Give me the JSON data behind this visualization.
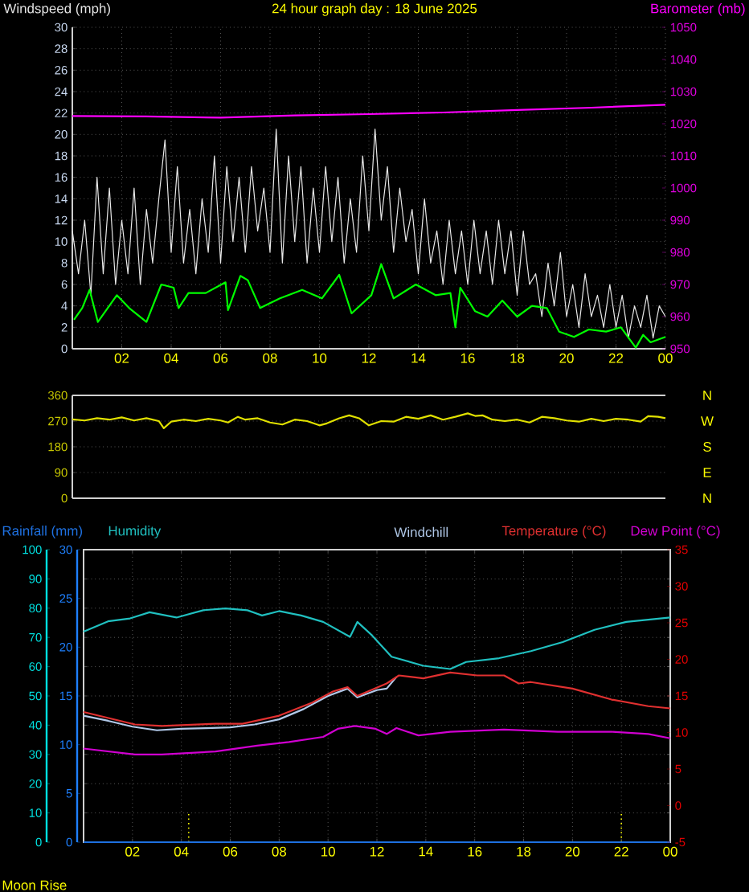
{
  "chart_data": [
    {
      "type": "line",
      "title": "24 hour graph day : 18 June 2025",
      "grid": true,
      "xlim": [
        "2025-06-18T00:00",
        "2025-06-19T00:00"
      ],
      "xticks": [
        {
          "value": "2025-06-18T02:00",
          "label": "02"
        },
        {
          "value": "2025-06-18T04:00",
          "label": "04"
        },
        {
          "value": "2025-06-18T06:00",
          "label": "06"
        },
        {
          "value": "2025-06-18T08:00",
          "label": "08"
        },
        {
          "value": "2025-06-18T10:00",
          "label": "10"
        },
        {
          "value": "2025-06-18T12:00",
          "label": "12"
        },
        {
          "value": "2025-06-18T14:00",
          "label": "14"
        },
        {
          "value": "2025-06-18T16:00",
          "label": "16"
        },
        {
          "value": "2025-06-18T18:00",
          "label": "18"
        },
        {
          "value": "2025-06-18T20:00",
          "label": "20"
        },
        {
          "value": "2025-06-18T22:00",
          "label": "22"
        },
        {
          "value": "2025-06-19T00:00",
          "label": "00"
        }
      ],
      "ylim": [
        0,
        30
      ],
      "yticks": [
        0,
        2,
        4,
        6,
        8,
        10,
        12,
        14,
        16,
        18,
        20,
        22,
        24,
        26,
        28,
        30
      ],
      "y2lim": [
        950,
        1050
      ],
      "y2ticks": [
        950,
        960,
        970,
        980,
        990,
        1000,
        1010,
        1020,
        1030,
        1040,
        1050
      ],
      "series": [
        {
          "name": "Windspeed (mph)",
          "color": "#e8e8e8",
          "x": [
            "2025-06-18T00:00",
            "2025-06-18T00:15",
            "2025-06-18T00:30",
            "2025-06-18T00:45",
            "2025-06-18T01:00",
            "2025-06-18T01:15",
            "2025-06-18T01:30",
            "2025-06-18T01:45",
            "2025-06-18T02:00",
            "2025-06-18T02:15",
            "2025-06-18T02:30",
            "2025-06-18T02:45",
            "2025-06-18T03:00",
            "2025-06-18T03:15",
            "2025-06-18T03:30",
            "2025-06-18T03:45",
            "2025-06-18T04:00",
            "2025-06-18T04:15",
            "2025-06-18T04:30",
            "2025-06-18T04:45",
            "2025-06-18T05:00",
            "2025-06-18T05:15",
            "2025-06-18T05:30",
            "2025-06-18T05:45",
            "2025-06-18T06:00",
            "2025-06-18T06:15",
            "2025-06-18T06:30",
            "2025-06-18T06:45",
            "2025-06-18T07:00",
            "2025-06-18T07:15",
            "2025-06-18T07:30",
            "2025-06-18T07:45",
            "2025-06-18T08:00",
            "2025-06-18T08:15",
            "2025-06-18T08:30",
            "2025-06-18T08:45",
            "2025-06-18T09:00",
            "2025-06-18T09:15",
            "2025-06-18T09:30",
            "2025-06-18T09:45",
            "2025-06-18T10:00",
            "2025-06-18T10:15",
            "2025-06-18T10:30",
            "2025-06-18T10:45",
            "2025-06-18T11:00",
            "2025-06-18T11:15",
            "2025-06-18T11:30",
            "2025-06-18T11:45",
            "2025-06-18T12:00",
            "2025-06-18T12:15",
            "2025-06-18T12:30",
            "2025-06-18T12:45",
            "2025-06-18T13:00",
            "2025-06-18T13:15",
            "2025-06-18T13:30",
            "2025-06-18T13:45",
            "2025-06-18T14:00",
            "2025-06-18T14:15",
            "2025-06-18T14:30",
            "2025-06-18T14:45",
            "2025-06-18T15:00",
            "2025-06-18T15:15",
            "2025-06-18T15:30",
            "2025-06-18T15:45",
            "2025-06-18T16:00",
            "2025-06-18T16:15",
            "2025-06-18T16:30",
            "2025-06-18T16:45",
            "2025-06-18T17:00",
            "2025-06-18T17:15",
            "2025-06-18T17:30",
            "2025-06-18T17:45",
            "2025-06-18T18:00",
            "2025-06-18T18:15",
            "2025-06-18T18:30",
            "2025-06-18T18:45",
            "2025-06-18T19:00",
            "2025-06-18T19:15",
            "2025-06-18T19:30",
            "2025-06-18T19:45",
            "2025-06-18T20:00",
            "2025-06-18T20:15",
            "2025-06-18T20:30",
            "2025-06-18T20:45",
            "2025-06-18T21:00",
            "2025-06-18T21:15",
            "2025-06-18T21:30",
            "2025-06-18T21:45",
            "2025-06-18T22:00",
            "2025-06-18T22:15",
            "2025-06-18T22:30",
            "2025-06-18T22:45",
            "2025-06-18T23:00",
            "2025-06-18T23:15",
            "2025-06-18T23:30",
            "2025-06-18T23:45",
            "2025-06-19T00:00"
          ],
          "values": [
            11,
            7,
            12,
            5,
            16,
            7,
            15,
            6,
            12,
            7,
            15,
            6,
            13,
            8,
            14,
            19.5,
            9,
            17,
            8,
            13,
            7,
            14,
            9,
            18,
            8,
            17,
            10,
            16,
            9,
            17,
            11,
            15,
            9,
            20.5,
            8,
            18,
            10,
            17,
            8,
            15,
            9,
            17,
            10,
            16,
            8,
            14,
            9,
            18,
            11,
            20.5,
            12,
            17,
            9,
            15,
            10,
            13,
            7,
            14,
            8,
            11,
            6,
            12,
            7,
            11,
            6,
            12,
            7,
            11,
            6,
            12,
            7,
            11,
            5,
            11,
            6,
            7,
            3,
            8,
            4,
            9,
            3,
            6,
            2,
            7,
            3,
            5,
            2,
            6,
            2,
            5,
            1,
            4,
            2,
            5,
            1,
            4,
            3
          ]
        },
        {
          "color": "#00ff00",
          "x": [
            "2025-06-18T00:04",
            "2025-06-18T00:24",
            "2025-06-18T00:42",
            "2025-06-18T01:02",
            "2025-06-18T01:48",
            "2025-06-18T02:18",
            "2025-06-18T03:00",
            "2025-06-18T03:36",
            "2025-06-18T04:06",
            "2025-06-18T04:18",
            "2025-06-18T04:42",
            "2025-06-18T05:24",
            "2025-06-18T06:12",
            "2025-06-18T06:18",
            "2025-06-18T06:48",
            "2025-06-18T07:06",
            "2025-06-18T07:36",
            "2025-06-18T08:24",
            "2025-06-18T09:18",
            "2025-06-18T10:06",
            "2025-06-18T10:48",
            "2025-06-18T11:18",
            "2025-06-18T12:06",
            "2025-06-18T12:30",
            "2025-06-18T13:00",
            "2025-06-18T13:54",
            "2025-06-18T14:42",
            "2025-06-18T15:18",
            "2025-06-18T15:30",
            "2025-06-18T15:42",
            "2025-06-18T16:18",
            "2025-06-18T16:48",
            "2025-06-18T17:24",
            "2025-06-18T18:00",
            "2025-06-18T18:36",
            "2025-06-18T19:12",
            "2025-06-18T19:42",
            "2025-06-18T20:18",
            "2025-06-18T20:54",
            "2025-06-18T21:36",
            "2025-06-18T22:12",
            "2025-06-18T22:48",
            "2025-06-18T23:06",
            "2025-06-18T23:24",
            "2025-06-19T00:00"
          ],
          "values": [
            2.7,
            3.8,
            5.5,
            2.5,
            5,
            3.8,
            2.5,
            6,
            5.7,
            3.8,
            5.2,
            5.2,
            6.2,
            3.6,
            6.8,
            6.4,
            3.8,
            4.7,
            5.5,
            4.7,
            6.9,
            3.3,
            5,
            7.9,
            4.7,
            6,
            5,
            5.2,
            2,
            5.7,
            3.5,
            3,
            4.5,
            3,
            4,
            3.8,
            1.6,
            1.1,
            1.8,
            1.6,
            2,
            0.1,
            1.3,
            0.6,
            1.1
          ]
        },
        {
          "name": "Barometer (mb)",
          "color": "#ff00ff",
          "axis": "y2",
          "x": [
            "2025-06-18T00:00",
            "2025-06-18T03:00",
            "2025-06-18T06:00",
            "2025-06-18T09:00",
            "2025-06-18T12:00",
            "2025-06-18T15:00",
            "2025-06-18T18:00",
            "2025-06-18T21:00",
            "2025-06-19T00:00"
          ],
          "values": [
            1022.4,
            1022.3,
            1021.9,
            1022.6,
            1023.0,
            1023.5,
            1024.3,
            1025.0,
            1025.9
          ]
        }
      ]
    },
    {
      "type": "line",
      "grid": "y",
      "tick_labels": "y",
      "annotations": [
        "N",
        "W",
        "S",
        "E",
        "N"
      ],
      "xlim": [
        "2025-06-18T00:00",
        "2025-06-19T00:00"
      ],
      "ylim": [
        0,
        360
      ],
      "yticks": [
        0,
        90,
        180,
        270,
        360
      ],
      "series": [
        {
          "color": "#e0e000",
          "x": [
            "2025-06-18T00:00",
            "2025-06-18T00:30",
            "2025-06-18T01:00",
            "2025-06-18T01:30",
            "2025-06-18T02:00",
            "2025-06-18T02:30",
            "2025-06-18T03:00",
            "2025-06-18T03:30",
            "2025-06-18T03:42",
            "2025-06-18T04:00",
            "2025-06-18T04:30",
            "2025-06-18T05:00",
            "2025-06-18T05:30",
            "2025-06-18T06:00",
            "2025-06-18T06:18",
            "2025-06-18T06:42",
            "2025-06-18T07:00",
            "2025-06-18T07:30",
            "2025-06-18T08:00",
            "2025-06-18T08:30",
            "2025-06-18T09:00",
            "2025-06-18T09:30",
            "2025-06-18T10:00",
            "2025-06-18T10:18",
            "2025-06-18T10:48",
            "2025-06-18T11:12",
            "2025-06-18T11:36",
            "2025-06-18T12:00",
            "2025-06-18T12:30",
            "2025-06-18T13:00",
            "2025-06-18T13:30",
            "2025-06-18T14:00",
            "2025-06-18T14:30",
            "2025-06-18T15:00",
            "2025-06-18T15:30",
            "2025-06-18T16:00",
            "2025-06-18T16:18",
            "2025-06-18T16:36",
            "2025-06-18T17:00",
            "2025-06-18T17:30",
            "2025-06-18T18:00",
            "2025-06-18T18:30",
            "2025-06-18T19:00",
            "2025-06-18T19:30",
            "2025-06-18T20:00",
            "2025-06-18T20:30",
            "2025-06-18T21:00",
            "2025-06-18T21:30",
            "2025-06-18T22:00",
            "2025-06-18T22:30",
            "2025-06-18T23:00",
            "2025-06-18T23:18",
            "2025-06-18T23:42",
            "2025-06-19T00:00"
          ],
          "values": [
            276,
            272,
            280,
            275,
            283,
            272,
            280,
            270,
            245,
            268,
            275,
            270,
            278,
            272,
            265,
            285,
            275,
            280,
            265,
            258,
            275,
            270,
            255,
            262,
            280,
            290,
            280,
            255,
            270,
            268,
            285,
            278,
            290,
            275,
            285,
            297,
            288,
            290,
            275,
            270,
            275,
            265,
            285,
            280,
            272,
            268,
            278,
            270,
            278,
            275,
            268,
            287,
            285,
            280
          ]
        }
      ]
    },
    {
      "type": "line",
      "grid": true,
      "annotations": [
        "Moon Rise"
      ],
      "xlim": [
        "2025-06-18T00:00",
        "2025-06-19T00:00"
      ],
      "xticks": [
        {
          "value": "2025-06-18T02:00",
          "label": "02"
        },
        {
          "value": "2025-06-18T04:00",
          "label": "04"
        },
        {
          "value": "2025-06-18T06:00",
          "label": "06"
        },
        {
          "value": "2025-06-18T08:00",
          "label": "08"
        },
        {
          "value": "2025-06-18T10:00",
          "label": "10"
        },
        {
          "value": "2025-06-18T12:00",
          "label": "12"
        },
        {
          "value": "2025-06-18T14:00",
          "label": "14"
        },
        {
          "value": "2025-06-18T16:00",
          "label": "16"
        },
        {
          "value": "2025-06-18T18:00",
          "label": "18"
        },
        {
          "value": "2025-06-18T20:00",
          "label": "20"
        },
        {
          "value": "2025-06-18T22:00",
          "label": "22"
        },
        {
          "value": "2025-06-19T00:00",
          "label": "00"
        }
      ],
      "ylim": [
        0,
        100
      ],
      "yticks": [
        0,
        10,
        20,
        30,
        40,
        50,
        60,
        70,
        80,
        90,
        100
      ],
      "y3lim": [
        0,
        30
      ],
      "y3ticks": [
        0,
        5,
        10,
        15,
        20,
        25,
        30
      ],
      "y2lim": [
        -5,
        35
      ],
      "y2ticks": [
        -5,
        0,
        5,
        10,
        15,
        20,
        25,
        30,
        35
      ],
      "ref_lines": [
        {
          "axis": "x",
          "value": "2025-06-18T04:18",
          "color": "#ffff00",
          "line_style": "dotted"
        },
        {
          "axis": "x",
          "value": "2025-06-18T22:00",
          "color": "#ffff00",
          "line_style": "dotted"
        }
      ],
      "series": [
        {
          "name": "Rainfall (mm)",
          "color": "#1e70e0",
          "axis": "y3",
          "x": [
            "2025-06-18T00:00",
            "2025-06-19T00:00"
          ],
          "values": [
            0,
            0
          ]
        },
        {
          "name": "Humidity",
          "color": "#20c0c0",
          "x": [
            "2025-06-18T00:00",
            "2025-06-18T01:00",
            "2025-06-18T01:54",
            "2025-06-18T02:42",
            "2025-06-18T03:48",
            "2025-06-18T04:54",
            "2025-06-18T05:48",
            "2025-06-18T06:42",
            "2025-06-18T07:18",
            "2025-06-18T08:00",
            "2025-06-18T08:54",
            "2025-06-18T09:48",
            "2025-06-18T10:54",
            "2025-06-18T11:12",
            "2025-06-18T11:48",
            "2025-06-18T12:36",
            "2025-06-18T13:54",
            "2025-06-18T15:00",
            "2025-06-18T15:39",
            "2025-06-18T17:00",
            "2025-06-18T18:18",
            "2025-06-18T19:36",
            "2025-06-18T20:54",
            "2025-06-18T22:12",
            "2025-06-19T00:00"
          ],
          "values": [
            72,
            75.5,
            76.5,
            78.6,
            76.8,
            79.3,
            79.9,
            79.3,
            77.5,
            79,
            77.5,
            75.3,
            70.2,
            75.3,
            70.7,
            63.4,
            60.3,
            59.2,
            61.6,
            62.9,
            65.3,
            68.4,
            72.6,
            75.3,
            76.8
          ]
        },
        {
          "name": "Windchill",
          "color": "#b0c8e8",
          "axis": "y2",
          "x": [
            "2025-06-18T00:00",
            "2025-06-18T01:00",
            "2025-06-18T02:00",
            "2025-06-18T03:00",
            "2025-06-18T04:00",
            "2025-06-18T05:00",
            "2025-06-18T06:00",
            "2025-06-18T07:00",
            "2025-06-18T08:00",
            "2025-06-18T09:00",
            "2025-06-18T10:00",
            "2025-06-18T10:48",
            "2025-06-18T11:12",
            "2025-06-18T12:00",
            "2025-06-18T12:24",
            "2025-06-18T12:48"
          ],
          "values": [
            12.3,
            11.6,
            10.8,
            10.3,
            10.5,
            10.6,
            10.7,
            11.1,
            11.8,
            13.2,
            15.0,
            16.0,
            14.8,
            15.8,
            16.0,
            17.6
          ]
        },
        {
          "name": "Temperature (°C)",
          "color": "#e03030",
          "axis": "y2",
          "x": [
            "2025-06-18T00:00",
            "2025-06-18T02:06",
            "2025-06-18T03:12",
            "2025-06-18T05:24",
            "2025-06-18T06:30",
            "2025-06-18T08:00",
            "2025-06-18T09:18",
            "2025-06-18T10:12",
            "2025-06-18T10:48",
            "2025-06-18T11:12",
            "2025-06-18T12:24",
            "2025-06-18T12:54",
            "2025-06-18T13:54",
            "2025-06-18T15:00",
            "2025-06-18T16:06",
            "2025-06-18T17:12",
            "2025-06-18T17:48",
            "2025-06-18T18:18",
            "2025-06-18T20:00",
            "2025-06-18T21:36",
            "2025-06-18T23:06",
            "2025-06-19T00:00"
          ],
          "values": [
            12.8,
            11.1,
            10.9,
            11.2,
            11.2,
            12.3,
            14.0,
            15.6,
            16.2,
            15.0,
            16.7,
            17.8,
            17.4,
            18.2,
            17.8,
            17.8,
            16.7,
            16.9,
            16.0,
            14.5,
            13.6,
            13.3
          ]
        },
        {
          "name": "Dew Point (°C)",
          "color": "#d000d0",
          "axis": "y2",
          "x": [
            "2025-06-18T00:00",
            "2025-06-18T02:06",
            "2025-06-18T03:12",
            "2025-06-18T05:24",
            "2025-06-18T07:06",
            "2025-06-18T08:24",
            "2025-06-18T09:48",
            "2025-06-18T10:24",
            "2025-06-18T11:06",
            "2025-06-18T11:57",
            "2025-06-18T12:24",
            "2025-06-18T12:48",
            "2025-06-18T13:42",
            "2025-06-18T15:00",
            "2025-06-18T17:12",
            "2025-06-18T19:24",
            "2025-06-18T21:36",
            "2025-06-18T23:06",
            "2025-06-19T00:00"
          ],
          "values": [
            7.8,
            7.0,
            7.0,
            7.4,
            8.2,
            8.7,
            9.4,
            10.5,
            10.9,
            10.5,
            9.8,
            10.6,
            9.6,
            10.1,
            10.4,
            10.1,
            10.1,
            9.8,
            9.2
          ]
        }
      ]
    }
  ]
}
